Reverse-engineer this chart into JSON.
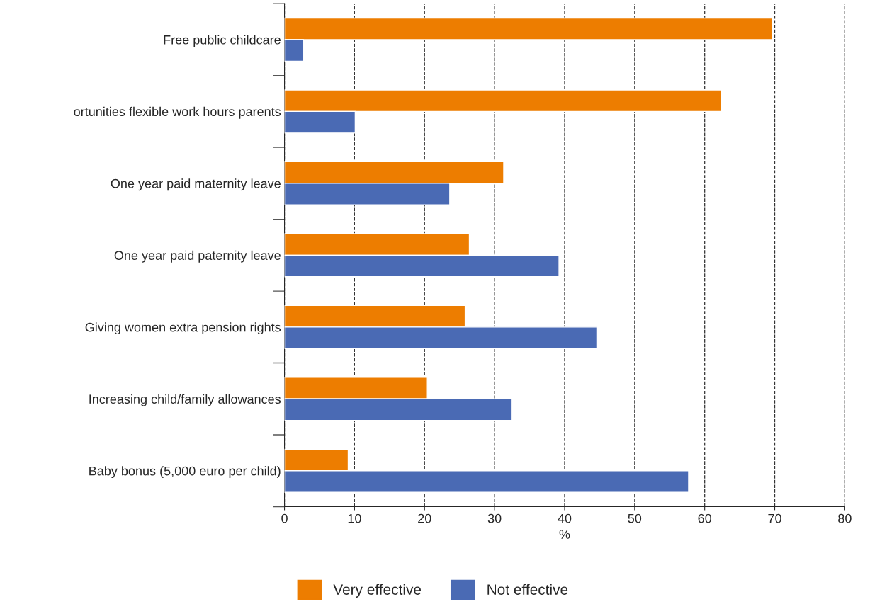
{
  "chart_data": {
    "type": "bar",
    "orientation": "horizontal",
    "xlabel": "%",
    "categories": [
      "Free public childcare",
      "ortunities flexible work hours parents",
      "One year paid maternity leave",
      "One year paid paternity leave",
      "Giving women extra pension rights",
      "Increasing child/family allowances",
      "Baby bonus (5,000 euro per child)"
    ],
    "series": [
      {
        "name": "Very effective",
        "color": "#ed7d00",
        "values": [
          69.7,
          62.4,
          31.3,
          26.4,
          25.8,
          20.4,
          9.1
        ]
      },
      {
        "name": "Not effective",
        "color": "#4a6ab4",
        "values": [
          2.7,
          10.1,
          23.6,
          39.2,
          44.6,
          32.4,
          57.7
        ]
      }
    ],
    "xlim": [
      0,
      80
    ],
    "xticks": [
      0,
      10,
      20,
      30,
      40,
      50,
      60,
      70,
      80
    ],
    "grid": "x",
    "legend": "bottom"
  }
}
